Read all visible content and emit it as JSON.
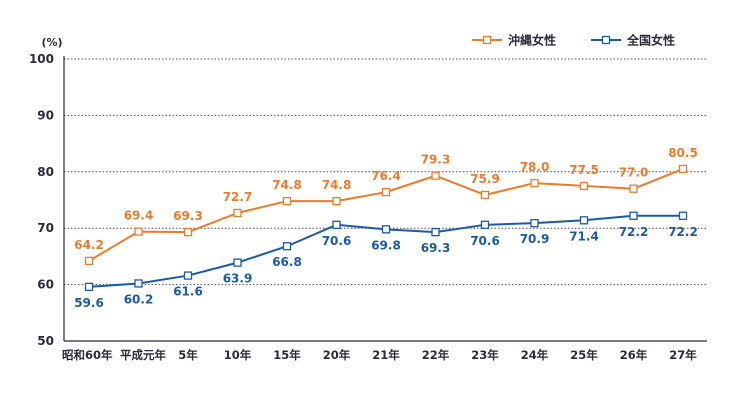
{
  "chart_data": {
    "type": "line",
    "y_unit": "(%)",
    "categories": [
      "昭和60年",
      "平成元年",
      "5年",
      "10年",
      "15年",
      "20年",
      "21年",
      "22年",
      "23年",
      "24年",
      "25年",
      "26年",
      "27年"
    ],
    "series": [
      {
        "name": "沖縄女性",
        "color": "#f07a28",
        "values": [
          64.2,
          69.4,
          69.3,
          72.7,
          74.8,
          74.8,
          76.4,
          79.3,
          75.9,
          78.0,
          77.5,
          77.0,
          80.5
        ],
        "labels": [
          "64.2",
          "69.4",
          "69.3",
          "72.7",
          "74.8",
          "74.8",
          "76.4",
          "79.3",
          "75.9",
          "78.0",
          "77.5",
          "77.0",
          "80.5"
        ],
        "label_position": "above"
      },
      {
        "name": "全国女性",
        "color": "#1a5ba8",
        "values": [
          59.6,
          60.2,
          61.6,
          63.9,
          66.8,
          70.6,
          69.8,
          69.3,
          70.6,
          70.9,
          71.4,
          72.2,
          72.2
        ],
        "labels": [
          "59.6",
          "60.2",
          "61.6",
          "63.9",
          "66.8",
          "70.6",
          "69.8",
          "69.3",
          "70.6",
          "70.9",
          "71.4",
          "72.2",
          "72.2"
        ],
        "label_position": "below"
      }
    ],
    "ylim": [
      50,
      100
    ],
    "yticks": [
      "50",
      "60",
      "70",
      "80",
      "90",
      "100"
    ],
    "grid": "horizontal dotted",
    "legend_position": "top-right",
    "label_color": "#2a2a3a",
    "grid_color": "#4a4a6a"
  }
}
